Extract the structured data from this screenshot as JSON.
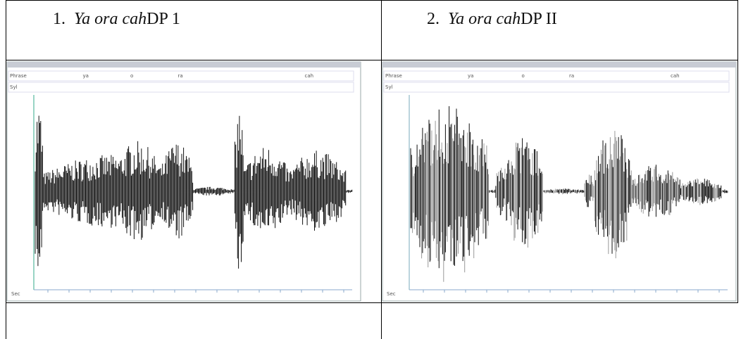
{
  "table": {
    "headers": [
      {
        "number": "1.",
        "italic": "Ya ora cah",
        "rest": "DP 1"
      },
      {
        "number": "2.",
        "italic": "Ya ora cah",
        "rest": "DP II"
      }
    ],
    "panels": [
      {
        "tiers": [
          "Phrase",
          "Syl"
        ],
        "phrase_labels": [
          "ya",
          "o",
          "ra",
          "cah"
        ],
        "axis_label": "Sec"
      },
      {
        "tiers": [
          "Phrase",
          "Syl"
        ],
        "phrase_labels": [
          "ya",
          "o",
          "ra",
          "cah"
        ],
        "axis_label": "Sec"
      }
    ]
  }
}
